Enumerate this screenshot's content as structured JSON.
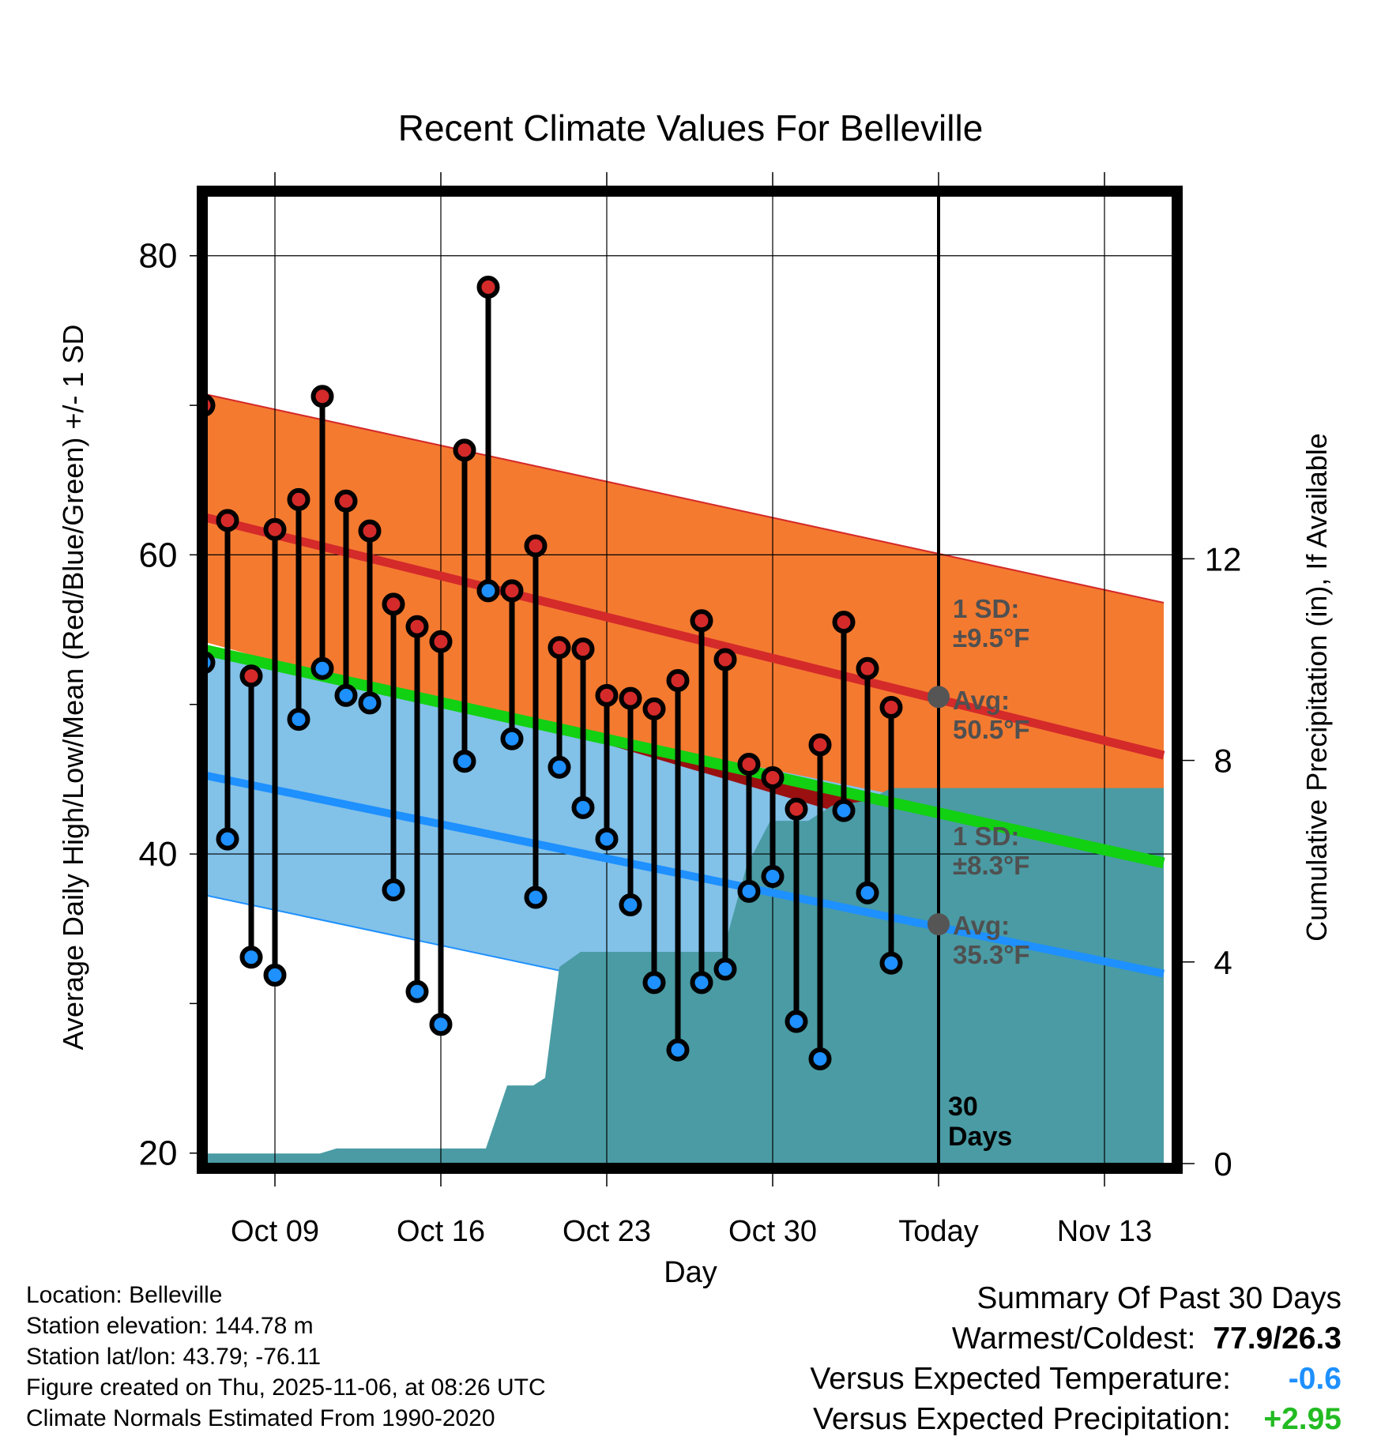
{
  "chart_data": {
    "type": "line",
    "title": "Recent Climate Values For Belleville",
    "xlabel": "Day",
    "ylabel": "Average Daily High/Low/Mean (Red/Blue/Green) +/- 1 SD",
    "y2label": "Cumulative Precipitation (in), If Available",
    "x_tick_labels": [
      "Oct 09",
      "Oct 16",
      "Oct 23",
      "Oct 30",
      "Today",
      "Nov 13"
    ],
    "y_ticks": [
      "20",
      "40",
      "60",
      "80"
    ],
    "y2_ticks": [
      "0",
      "4",
      "8",
      "12"
    ],
    "ylim": [
      19.3,
      84
    ],
    "y2lim": [
      0,
      19.2
    ],
    "x_range_days": [
      -31.7,
      9.5
    ],
    "today_marker_label": "30\nDays",
    "normal_high": {
      "avg_label": "Avg:\n50.5°F",
      "sd_label": "1 SD:\n±9.5°F",
      "avg_start": 62.8,
      "avg_end": 46.6,
      "upper_start": 71.0,
      "upper_end": 56.8,
      "lower_start": 54.5,
      "lower_end": 36.4,
      "today_avg": 50.5
    },
    "normal_low": {
      "avg_label": "Avg:\n35.3°F",
      "sd_label": "1 SD:\n±8.3°F",
      "avg_start": 45.5,
      "avg_end": 32.0,
      "upper_start": 53.6,
      "upper_end": 40.3,
      "lower_start": 37.5,
      "lower_end": 23.6,
      "today_avg": 35.3
    },
    "observed_mean": {
      "start": 53.9,
      "end": 39.4
    },
    "daily": [
      {
        "day": -31,
        "high": 70.0,
        "low": 52.8
      },
      {
        "day": -30,
        "high": 62.3,
        "low": 41.0
      },
      {
        "day": -29,
        "high": 51.9,
        "low": 33.1
      },
      {
        "day": -28,
        "high": 61.7,
        "low": 31.9
      },
      {
        "day": -27,
        "high": 63.7,
        "low": 49.0
      },
      {
        "day": -26,
        "high": 70.6,
        "low": 52.4
      },
      {
        "day": -25,
        "high": 63.6,
        "low": 50.6
      },
      {
        "day": -24,
        "high": 61.6,
        "low": 50.1
      },
      {
        "day": -23,
        "high": 56.7,
        "low": 37.6
      },
      {
        "day": -22,
        "high": 55.2,
        "low": 30.8
      },
      {
        "day": -21,
        "high": 54.2,
        "low": 28.6
      },
      {
        "day": -20,
        "high": 67.0,
        "low": 46.2
      },
      {
        "day": -19,
        "high": 77.9,
        "low": 57.6
      },
      {
        "day": -18,
        "high": 57.6,
        "low": 47.7
      },
      {
        "day": -17,
        "high": 60.6,
        "low": 37.1
      },
      {
        "day": -16,
        "high": 53.8,
        "low": 45.8
      },
      {
        "day": -15,
        "high": 53.7,
        "low": 43.1
      },
      {
        "day": -14,
        "high": 50.6,
        "low": 41.0
      },
      {
        "day": -13,
        "high": 50.4,
        "low": 36.6
      },
      {
        "day": -12,
        "high": 49.7,
        "low": 31.4
      },
      {
        "day": -11,
        "high": 51.6,
        "low": 26.9
      },
      {
        "day": -10,
        "high": 55.6,
        "low": 31.4
      },
      {
        "day": -9,
        "high": 53.0,
        "low": 32.3
      },
      {
        "day": -8,
        "high": 46.0,
        "low": 37.5
      },
      {
        "day": -7,
        "high": 45.1,
        "low": 38.5
      },
      {
        "day": -6,
        "high": 43.0,
        "low": 28.8
      },
      {
        "day": -5,
        "high": 47.3,
        "low": 26.3
      },
      {
        "day": -4,
        "high": 55.5,
        "low": 42.9
      },
      {
        "day": -3,
        "high": 52.4,
        "low": 37.4
      },
      {
        "day": -2,
        "high": 49.8,
        "low": 32.7
      }
    ],
    "precip_cumulative": [
      {
        "day": -31.7,
        "value": 0.0
      },
      {
        "day": -31.1,
        "value": 0.2
      },
      {
        "day": -26.1,
        "value": 0.2
      },
      {
        "day": -25.4,
        "value": 0.3
      },
      {
        "day": -19.1,
        "value": 0.3
      },
      {
        "day": -18.2,
        "value": 1.55
      },
      {
        "day": -17.1,
        "value": 1.55
      },
      {
        "day": -16.6,
        "value": 1.7
      },
      {
        "day": -16.0,
        "value": 3.9
      },
      {
        "day": -15.1,
        "value": 4.2
      },
      {
        "day": -9.1,
        "value": 4.2
      },
      {
        "day": -8.1,
        "value": 5.9
      },
      {
        "day": -7.1,
        "value": 6.8
      },
      {
        "day": -5.5,
        "value": 6.8
      },
      {
        "day": -4.5,
        "value": 7.1
      },
      {
        "day": -3.0,
        "value": 7.2
      },
      {
        "day": -2.0,
        "value": 7.45
      },
      {
        "day": 9.5,
        "value": 7.45
      }
    ],
    "colors": {
      "high_band": "#f47a30",
      "high_avg": "#d42a2a",
      "low_band": "#82c1e8",
      "low_avg": "#1e90ff",
      "mean_line": "#12d012",
      "deficit_band": "#9a1010",
      "precip": "#4a9ba4",
      "high_marker": "#d42a2a",
      "low_marker": "#1e90ff",
      "label_gray": "#505050"
    }
  },
  "footer": {
    "location": "Location: Belleville",
    "elevation": "Station elevation: 144.78 m",
    "latlon": "Station lat/lon: 43.79; -76.11",
    "created": "Figure created on Thu, 2025-11-06, at 08:26 UTC",
    "normals": "Climate Normals Estimated From 1990-2020"
  },
  "summary": {
    "heading": "Summary Of Past 30 Days",
    "warm_cold_label": "Warmest/Coldest:",
    "warm_cold_value": "77.9/26.3",
    "temp_label": "Versus Expected Temperature:",
    "temp_value": "-0.6",
    "temp_color": "#1e90ff",
    "precip_label": "Versus Expected Precipitation:",
    "precip_value": "+2.95",
    "precip_color": "#22bb22"
  }
}
